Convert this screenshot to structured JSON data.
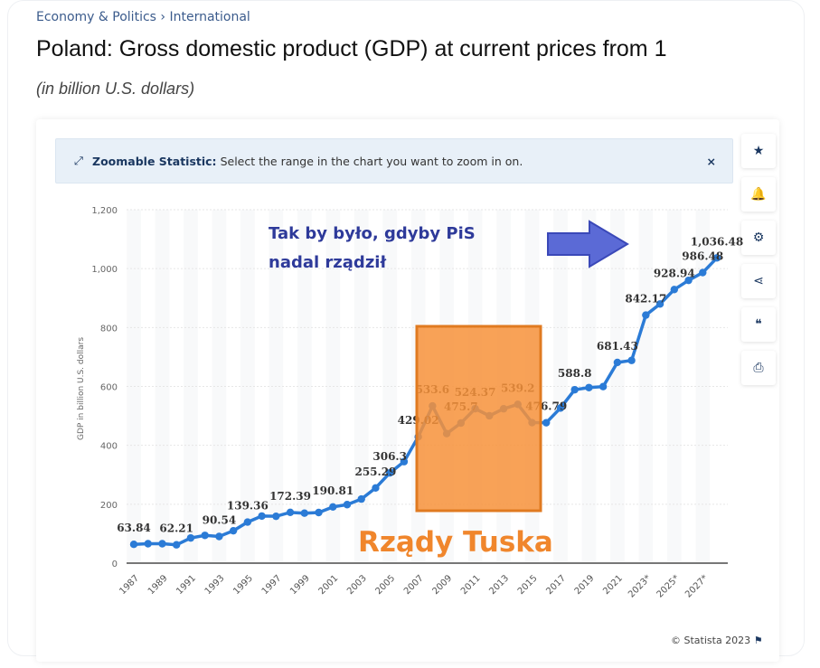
{
  "breadcrumb": {
    "items": [
      "Economy & Politics",
      "International"
    ],
    "separator": "›"
  },
  "title": "Poland: Gross domestic product (GDP) at current prices from 1",
  "subtitle": "(in billion U.S. dollars)",
  "banner": {
    "icon": "zoom-icon",
    "label": "Zoomable Statistic:",
    "text": "Select the range in the chart you want to zoom in on.",
    "close": "×"
  },
  "sidebar": [
    {
      "name": "star-icon",
      "glyph": "★"
    },
    {
      "name": "bell-icon",
      "glyph": "🔔"
    },
    {
      "name": "gear-icon",
      "glyph": "⚙"
    },
    {
      "name": "share-icon",
      "glyph": "⋖"
    },
    {
      "name": "quote-icon",
      "glyph": "❝"
    },
    {
      "name": "print-icon",
      "glyph": "⎙"
    }
  ],
  "copyright": "© Statista 2023",
  "annotations": {
    "pis_line1": "Tak by było, gdyby PiS",
    "pis_line2": "nadal rządził",
    "tusk": "Rządy Tuska",
    "colors": {
      "blue_text": "#2e3a9a",
      "arrow": "#5b6ad6",
      "orange": "#f7923a"
    }
  },
  "chart_data": {
    "type": "line",
    "ylabel": "GDP in billion U.S. dollars",
    "ylim": [
      0,
      1200
    ],
    "yticks": [
      0,
      200,
      400,
      600,
      800,
      1000,
      1200
    ],
    "ytick_labels": [
      "0",
      "200",
      "400",
      "600",
      "800",
      "1,000",
      "1,200"
    ],
    "xtick_labels": [
      "1987",
      "1989",
      "1991",
      "1993",
      "1995",
      "1997",
      "1999",
      "2001",
      "2003",
      "2005",
      "2007",
      "2009",
      "2011",
      "2013",
      "2015",
      "2017",
      "2019",
      "2021",
      "2023*",
      "2025*",
      "2027*"
    ],
    "x": [
      1987,
      1988,
      1989,
      1990,
      1991,
      1992,
      1993,
      1994,
      1995,
      1996,
      1997,
      1998,
      1999,
      2000,
      2001,
      2002,
      2003,
      2004,
      2005,
      2006,
      2007,
      2008,
      2009,
      2010,
      2011,
      2012,
      2013,
      2014,
      2015,
      2016,
      2017,
      2018,
      2019,
      2020,
      2021,
      2022,
      2023,
      2024,
      2025,
      2026,
      2027,
      2028
    ],
    "values": [
      63.84,
      66,
      66,
      62.21,
      85.5,
      94.3,
      90.54,
      110,
      139.36,
      159.9,
      159.1,
      172.39,
      169.7,
      171.9,
      190.81,
      198.7,
      217.6,
      255.29,
      306.3,
      344.6,
      429.02,
      533.6,
      439.8,
      475.7,
      524.37,
      500.3,
      524.1,
      539.2,
      477.1,
      476.79,
      526.7,
      588.8,
      596.1,
      599.4,
      681.43,
      688.3,
      842.17,
      880,
      928.94,
      960,
      986.48,
      1036.48
    ],
    "data_labels": [
      {
        "x": 1987,
        "text": "63.84"
      },
      {
        "x": 1990,
        "text": "62.21"
      },
      {
        "x": 1993,
        "text": "90.54"
      },
      {
        "x": 1995,
        "text": "139.36"
      },
      {
        "x": 1998,
        "text": "172.39"
      },
      {
        "x": 2001,
        "text": "190.81"
      },
      {
        "x": 2004,
        "text": "255.29"
      },
      {
        "x": 2005,
        "text": "306.3"
      },
      {
        "x": 2007,
        "text": "429.02"
      },
      {
        "x": 2008,
        "text": "533.6"
      },
      {
        "x": 2010,
        "text": "475.7"
      },
      {
        "x": 2011,
        "text": "524.37"
      },
      {
        "x": 2014,
        "text": "539.2"
      },
      {
        "x": 2016,
        "text": "476.79"
      },
      {
        "x": 2018,
        "text": "588.8"
      },
      {
        "x": 2021,
        "text": "681.43"
      },
      {
        "x": 2023,
        "text": "842.17"
      },
      {
        "x": 2025,
        "text": "928.94"
      },
      {
        "x": 2027,
        "text": "986.48"
      },
      {
        "x": 2028,
        "text": "1,036.48"
      }
    ],
    "color": "#2b7bd6",
    "grid": true
  }
}
